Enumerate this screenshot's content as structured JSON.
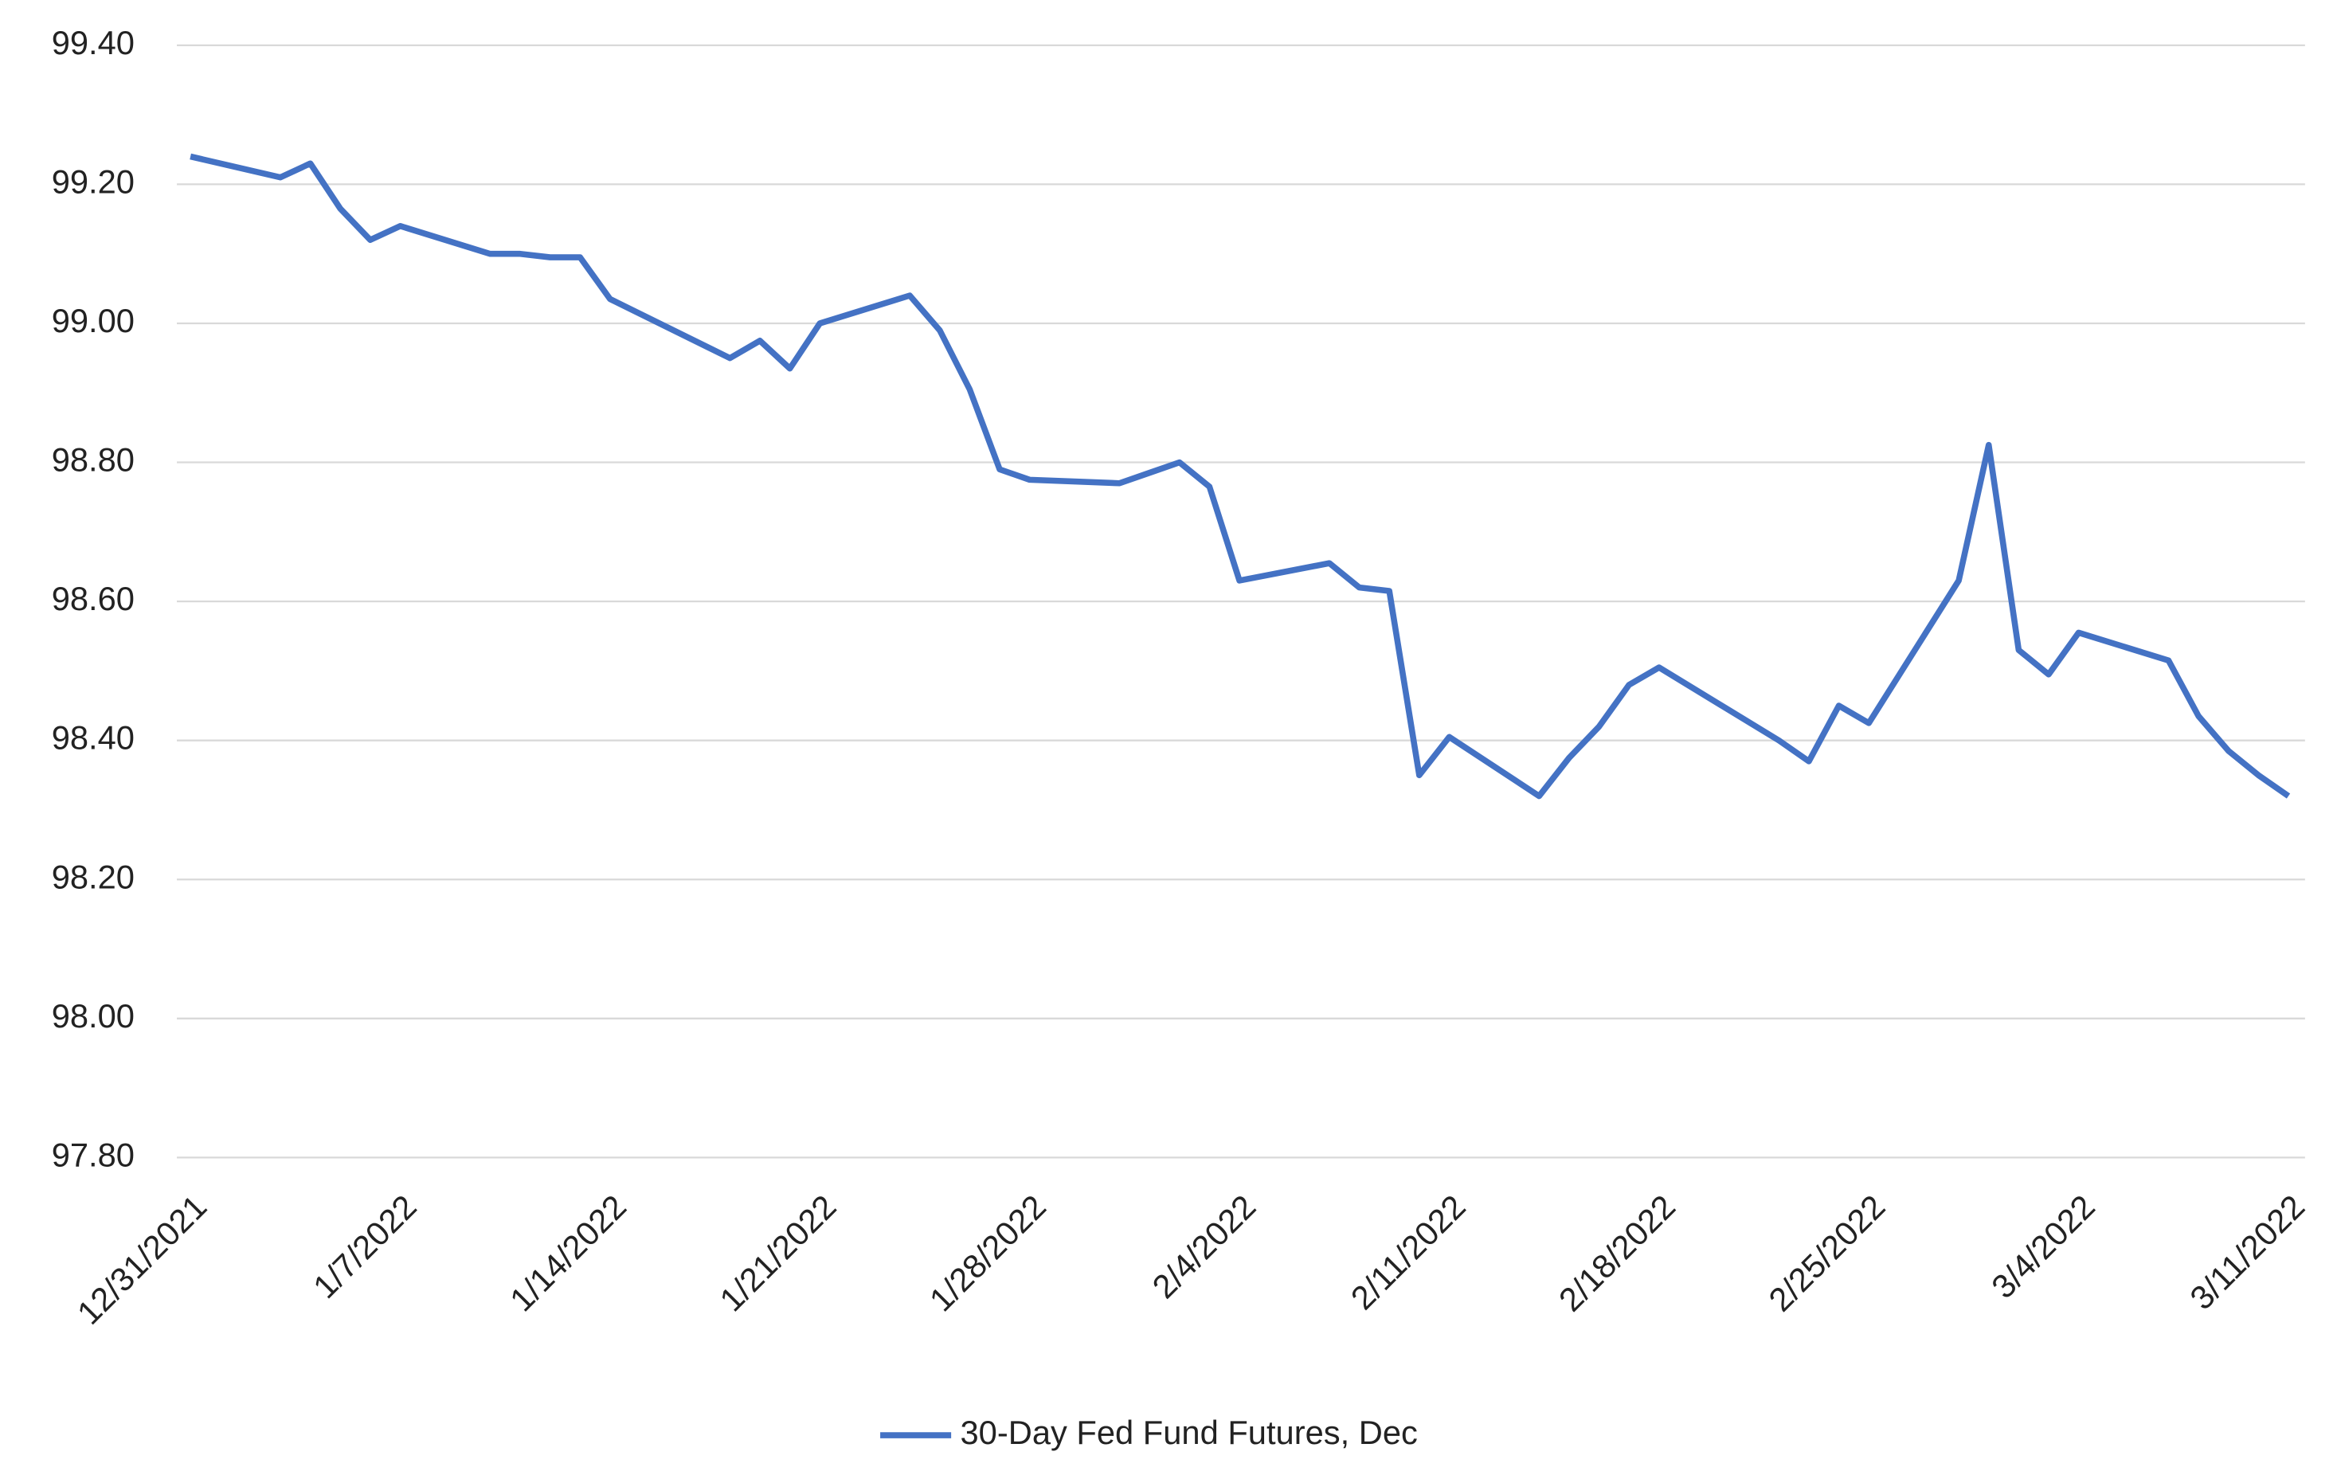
{
  "chart_data": {
    "type": "line",
    "x": [
      "12/31/2021",
      "1/3/2022",
      "1/4/2022",
      "1/5/2022",
      "1/6/2022",
      "1/7/2022",
      "1/10/2022",
      "1/11/2022",
      "1/12/2022",
      "1/13/2022",
      "1/14/2022",
      "1/18/2022",
      "1/19/2022",
      "1/20/2022",
      "1/21/2022",
      "1/24/2022",
      "1/25/2022",
      "1/26/2022",
      "1/27/2022",
      "1/28/2022",
      "1/31/2022",
      "2/1/2022",
      "2/2/2022",
      "2/3/2022",
      "2/4/2022",
      "2/7/2022",
      "2/8/2022",
      "2/9/2022",
      "2/10/2022",
      "2/11/2022",
      "2/14/2022",
      "2/15/2022",
      "2/16/2022",
      "2/17/2022",
      "2/18/2022",
      "2/22/2022",
      "2/23/2022",
      "2/24/2022",
      "2/25/2022",
      "2/28/2022",
      "3/1/2022",
      "3/2/2022",
      "3/3/2022",
      "3/4/2022",
      "3/7/2022",
      "3/8/2022",
      "3/9/2022",
      "3/10/2022",
      "3/11/2022"
    ],
    "series": [
      {
        "name": "30-Day Fed Fund Futures, Dec",
        "color": "#4472c4",
        "values": [
          99.24,
          99.21,
          99.23,
          99.165,
          99.12,
          99.14,
          99.1,
          99.1,
          99.095,
          99.095,
          99.035,
          98.95,
          98.975,
          98.935,
          99.0,
          99.04,
          98.99,
          98.905,
          98.79,
          98.775,
          98.77,
          98.785,
          98.8,
          98.765,
          98.63,
          98.655,
          98.62,
          98.615,
          98.35,
          98.405,
          98.32,
          98.375,
          98.42,
          98.48,
          98.505,
          98.4,
          98.37,
          98.45,
          98.425,
          98.63,
          98.825,
          98.53,
          98.495,
          98.555,
          98.515,
          98.435,
          98.385,
          98.35,
          98.32
        ]
      }
    ],
    "xlim": [
      "12/31/2021",
      "3/11/2022"
    ],
    "xticks": [
      "12/31/2021",
      "1/7/2022",
      "1/14/2022",
      "1/21/2022",
      "1/28/2022",
      "2/4/2022",
      "2/11/2022",
      "2/18/2022",
      "2/25/2022",
      "3/4/2022",
      "3/11/2022"
    ],
    "ylim": [
      97.8,
      99.4
    ],
    "yticks": [
      {
        "value": 97.8,
        "label": "97.80"
      },
      {
        "value": 98.0,
        "label": "98.00"
      },
      {
        "value": 98.2,
        "label": "98.20"
      },
      {
        "value": 98.4,
        "label": "98.40"
      },
      {
        "value": 98.6,
        "label": "98.60"
      },
      {
        "value": 98.8,
        "label": "98.80"
      },
      {
        "value": 99.0,
        "label": "99.00"
      },
      {
        "value": 99.2,
        "label": "99.20"
      },
      {
        "value": 99.4,
        "label": "99.40"
      }
    ],
    "grid": true,
    "legend": "bottom"
  }
}
